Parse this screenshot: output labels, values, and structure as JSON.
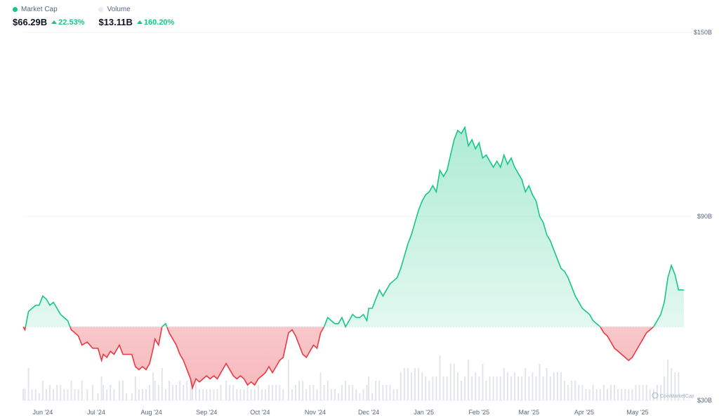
{
  "legend": {
    "market_cap": {
      "label": "Market Cap",
      "value": "$66.29B",
      "change": "22.53%",
      "color": "#16c784"
    },
    "volume": {
      "label": "Volume",
      "value": "$13.11B",
      "change": "160.20%",
      "color": "#e9ecf2"
    }
  },
  "watermark": "CoinMarketCap",
  "colors": {
    "up": "#16c784",
    "down": "#ea3943",
    "grid": "#f1f3f6",
    "volume": "#e2e5eb"
  },
  "chart_data": {
    "type": "area",
    "y_axis_labels": [
      {
        "label": "$150B",
        "value": 150
      },
      {
        "label": "$90B",
        "value": 90
      },
      {
        "label": "$30B",
        "value": 30
      }
    ],
    "ylim": [
      30,
      150
    ],
    "x_tick_labels": [
      "Jun '24",
      "Jul '24",
      "Aug '24",
      "Sep '24",
      "Oct '24",
      "Nov '24",
      "Dec '24",
      "Jan '25",
      "Feb '25",
      "Mar '25",
      "Apr '25",
      "May '25"
    ],
    "x_range": [
      "2024-05-21",
      "2025-05-27"
    ],
    "baseline": 54,
    "series": [
      {
        "values_note": "market cap in $B, date [YYYY-MM-DD, value]",
        "points": [
          [
            "2024-05-21",
            54
          ],
          [
            "2024-05-22",
            53
          ],
          [
            "2024-05-24",
            59
          ],
          [
            "2024-05-26",
            60
          ],
          [
            "2024-05-28",
            61
          ],
          [
            "2024-05-30",
            61
          ],
          [
            "2024-06-01",
            64
          ],
          [
            "2024-06-03",
            63
          ],
          [
            "2024-06-05",
            61
          ],
          [
            "2024-06-07",
            62
          ],
          [
            "2024-06-09",
            60
          ],
          [
            "2024-06-11",
            58
          ],
          [
            "2024-06-13",
            57
          ],
          [
            "2024-06-15",
            56
          ],
          [
            "2024-06-17",
            53
          ],
          [
            "2024-06-19",
            52
          ],
          [
            "2024-06-21",
            51
          ],
          [
            "2024-06-23",
            48
          ],
          [
            "2024-06-26",
            49
          ],
          [
            "2024-06-29",
            47
          ],
          [
            "2024-07-02",
            47
          ],
          [
            "2024-07-04",
            43
          ],
          [
            "2024-07-05",
            45
          ],
          [
            "2024-07-07",
            44
          ],
          [
            "2024-07-09",
            46
          ],
          [
            "2024-07-11",
            45
          ],
          [
            "2024-07-14",
            48
          ],
          [
            "2024-07-16",
            45
          ],
          [
            "2024-07-18",
            45
          ],
          [
            "2024-07-21",
            45
          ],
          [
            "2024-07-23",
            41
          ],
          [
            "2024-07-25",
            40
          ],
          [
            "2024-07-27",
            41
          ],
          [
            "2024-07-29",
            40
          ],
          [
            "2024-07-31",
            42
          ],
          [
            "2024-08-02",
            47
          ],
          [
            "2024-08-03",
            50
          ],
          [
            "2024-08-05",
            48
          ],
          [
            "2024-08-07",
            54
          ],
          [
            "2024-08-09",
            55
          ],
          [
            "2024-08-11",
            52
          ],
          [
            "2024-08-13",
            50
          ],
          [
            "2024-08-15",
            48
          ],
          [
            "2024-08-17",
            45
          ],
          [
            "2024-08-19",
            43
          ],
          [
            "2024-08-21",
            40
          ],
          [
            "2024-08-23",
            37
          ],
          [
            "2024-08-24",
            34
          ],
          [
            "2024-08-26",
            37
          ],
          [
            "2024-08-28",
            36
          ],
          [
            "2024-08-30",
            37
          ],
          [
            "2024-09-01",
            38
          ],
          [
            "2024-09-03",
            37
          ],
          [
            "2024-09-05",
            38
          ],
          [
            "2024-09-07",
            37
          ],
          [
            "2024-09-09",
            39
          ],
          [
            "2024-09-12",
            42
          ],
          [
            "2024-09-14",
            40
          ],
          [
            "2024-09-16",
            38
          ],
          [
            "2024-09-18",
            37
          ],
          [
            "2024-09-20",
            38
          ],
          [
            "2024-09-22",
            37
          ],
          [
            "2024-09-24",
            35
          ],
          [
            "2024-09-26",
            36
          ],
          [
            "2024-09-28",
            35
          ],
          [
            "2024-09-30",
            37
          ],
          [
            "2024-10-02",
            38
          ],
          [
            "2024-10-04",
            39
          ],
          [
            "2024-10-06",
            41
          ],
          [
            "2024-10-08",
            39
          ],
          [
            "2024-10-10",
            41
          ],
          [
            "2024-10-12",
            43
          ],
          [
            "2024-10-14",
            44
          ],
          [
            "2024-10-17",
            52
          ],
          [
            "2024-10-19",
            53
          ],
          [
            "2024-10-21",
            51
          ],
          [
            "2024-10-23",
            48
          ],
          [
            "2024-10-25",
            45
          ],
          [
            "2024-10-27",
            44
          ],
          [
            "2024-10-29",
            46
          ],
          [
            "2024-10-31",
            48
          ],
          [
            "2024-11-02",
            47
          ],
          [
            "2024-11-04",
            52
          ],
          [
            "2024-11-06",
            54
          ],
          [
            "2024-11-08",
            57
          ],
          [
            "2024-11-10",
            56
          ],
          [
            "2024-11-12",
            55
          ],
          [
            "2024-11-14",
            55
          ],
          [
            "2024-11-16",
            57
          ],
          [
            "2024-11-18",
            54
          ],
          [
            "2024-11-20",
            56
          ],
          [
            "2024-11-22",
            58
          ],
          [
            "2024-11-24",
            57
          ],
          [
            "2024-11-26",
            57
          ],
          [
            "2024-11-28",
            58
          ],
          [
            "2024-11-30",
            56
          ],
          [
            "2024-12-01",
            60
          ],
          [
            "2024-12-03",
            60
          ],
          [
            "2024-12-05",
            63
          ],
          [
            "2024-12-07",
            66
          ],
          [
            "2024-12-09",
            64
          ],
          [
            "2024-12-11",
            66
          ],
          [
            "2024-12-13",
            68
          ],
          [
            "2024-12-15",
            69
          ],
          [
            "2024-12-17",
            70
          ],
          [
            "2024-12-19",
            73
          ],
          [
            "2024-12-21",
            77
          ],
          [
            "2024-12-23",
            81
          ],
          [
            "2024-12-25",
            84
          ],
          [
            "2024-12-27",
            88
          ],
          [
            "2024-12-29",
            92
          ],
          [
            "2024-12-31",
            95
          ],
          [
            "2025-01-02",
            97
          ],
          [
            "2025-01-04",
            98
          ],
          [
            "2025-01-06",
            100
          ],
          [
            "2025-01-08",
            98
          ],
          [
            "2025-01-10",
            105
          ],
          [
            "2025-01-12",
            103
          ],
          [
            "2025-01-14",
            105
          ],
          [
            "2025-01-16",
            110
          ],
          [
            "2025-01-18",
            115
          ],
          [
            "2025-01-20",
            118
          ],
          [
            "2025-01-22",
            117
          ],
          [
            "2025-01-24",
            119
          ],
          [
            "2025-01-26",
            113
          ],
          [
            "2025-01-28",
            115
          ],
          [
            "2025-01-30",
            112
          ],
          [
            "2025-02-01",
            114
          ],
          [
            "2025-02-03",
            109
          ],
          [
            "2025-02-05",
            110
          ],
          [
            "2025-02-07",
            108
          ],
          [
            "2025-02-09",
            106
          ],
          [
            "2025-02-11",
            108
          ],
          [
            "2025-02-13",
            106
          ],
          [
            "2025-02-15",
            110
          ],
          [
            "2025-02-17",
            107
          ],
          [
            "2025-02-19",
            109
          ],
          [
            "2025-02-21",
            106
          ],
          [
            "2025-02-23",
            104
          ],
          [
            "2025-02-25",
            102
          ],
          [
            "2025-02-27",
            98
          ],
          [
            "2025-03-01",
            100
          ],
          [
            "2025-03-03",
            97
          ],
          [
            "2025-03-05",
            95
          ],
          [
            "2025-03-07",
            90
          ],
          [
            "2025-03-09",
            88
          ],
          [
            "2025-03-11",
            84
          ],
          [
            "2025-03-13",
            82
          ],
          [
            "2025-03-15",
            79
          ],
          [
            "2025-03-17",
            76
          ],
          [
            "2025-03-19",
            73
          ],
          [
            "2025-03-21",
            72
          ],
          [
            "2025-03-23",
            70
          ],
          [
            "2025-03-25",
            67
          ],
          [
            "2025-03-27",
            64
          ],
          [
            "2025-03-29",
            62
          ],
          [
            "2025-03-31",
            60
          ],
          [
            "2025-04-02",
            59
          ],
          [
            "2025-04-04",
            58
          ],
          [
            "2025-04-06",
            56
          ],
          [
            "2025-04-08",
            55
          ],
          [
            "2025-04-10",
            54
          ],
          [
            "2025-04-12",
            52
          ],
          [
            "2025-04-14",
            51
          ],
          [
            "2025-04-16",
            49
          ],
          [
            "2025-04-18",
            47
          ],
          [
            "2025-04-20",
            46
          ],
          [
            "2025-04-22",
            45
          ],
          [
            "2025-04-24",
            44
          ],
          [
            "2025-04-26",
            43
          ],
          [
            "2025-04-28",
            44
          ],
          [
            "2025-04-30",
            46
          ],
          [
            "2025-05-02",
            48
          ],
          [
            "2025-05-04",
            50
          ],
          [
            "2025-05-06",
            52
          ],
          [
            "2025-05-08",
            53
          ],
          [
            "2025-05-10",
            54
          ],
          [
            "2025-05-12",
            56
          ],
          [
            "2025-05-14",
            58
          ],
          [
            "2025-05-16",
            62
          ],
          [
            "2025-05-18",
            70
          ],
          [
            "2025-05-20",
            74
          ],
          [
            "2025-05-22",
            71
          ],
          [
            "2025-05-24",
            66
          ],
          [
            "2025-05-27",
            66
          ]
        ]
      }
    ]
  }
}
